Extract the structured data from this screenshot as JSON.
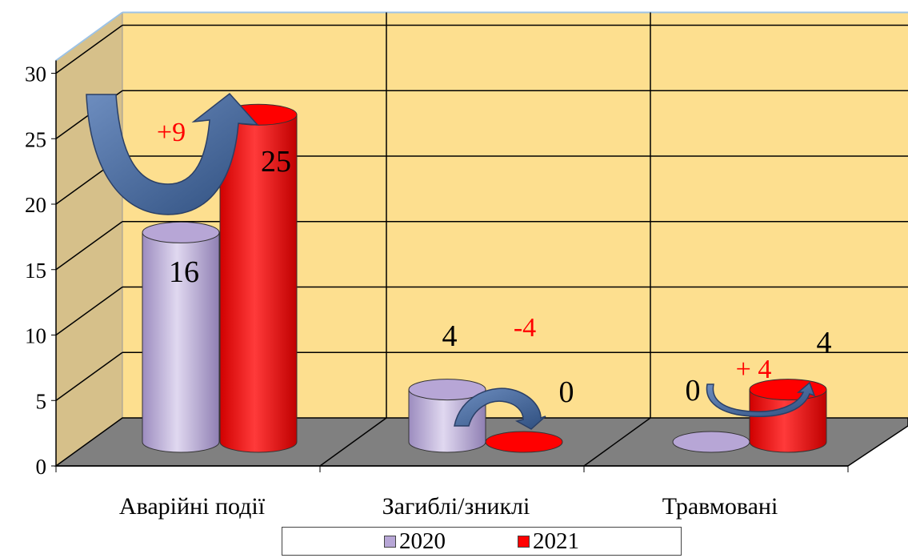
{
  "chart_data": {
    "type": "bar",
    "categories": [
      "Аварійні події",
      "Загиблі/зниклі",
      "Травмовані"
    ],
    "series": [
      {
        "name": "2020",
        "values": [
          16,
          4,
          0
        ],
        "color": "#b7a6d6",
        "labels": [
          "16",
          "4",
          "0"
        ]
      },
      {
        "name": "2021",
        "values": [
          25,
          0,
          4
        ],
        "color": "#ff0000",
        "labels": [
          "25",
          "0",
          "4"
        ]
      }
    ],
    "annotations": [
      {
        "category_index": 0,
        "text": "+9",
        "arrow": "up",
        "arrow_color": "#4f6f9f"
      },
      {
        "category_index": 1,
        "text": "-4",
        "arrow": "down",
        "arrow_color": "#4f6f9f"
      },
      {
        "category_index": 2,
        "text": "+ 4",
        "arrow": "up",
        "arrow_color": "#4f6f9f"
      }
    ],
    "yticks": [
      "0",
      "5",
      "10",
      "15",
      "20",
      "25",
      "30"
    ],
    "ylim": [
      0,
      30
    ],
    "grid": true,
    "legend_position": "bottom",
    "colors": {
      "back_wall": "#fddf8f",
      "side_wall": "#d6c08a",
      "floor": "#808080",
      "grid": "#000000",
      "annotation_text": "#ff0000"
    }
  }
}
